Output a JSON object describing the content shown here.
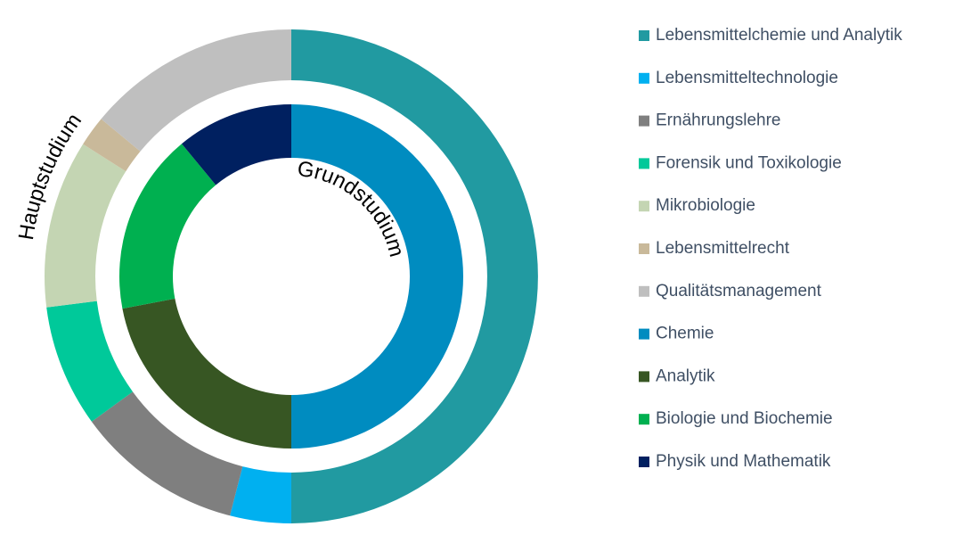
{
  "chart_data": {
    "type": "donut",
    "series": [
      {
        "name": "Hauptstudium",
        "ring": "outer",
        "labels": [
          "Lebensmittelchemie und Analytik",
          "Lebensmitteltechnologie",
          "Ernährungslehre",
          "Forensik und Toxikologie",
          "Mikrobiologie",
          "Lebensmittelrecht",
          "Qualitätsmanagement"
        ],
        "values": [
          50,
          4,
          11,
          8,
          11,
          2,
          14
        ],
        "colors": [
          "#219aa1",
          "#00b0f0",
          "#7f7f7f",
          "#00c99a",
          "#c4d5b3",
          "#c9b99a",
          "#bfbfbf"
        ]
      },
      {
        "name": "Grundstudium",
        "ring": "inner",
        "labels": [
          "Chemie",
          "Analytik",
          "Biologie und Biochemie",
          "Physik und Mathematik"
        ],
        "values": [
          50,
          22,
          17,
          11
        ],
        "colors": [
          "#008cc0",
          "#375623",
          "#00b050",
          "#002060"
        ]
      }
    ],
    "legend": "right"
  }
}
